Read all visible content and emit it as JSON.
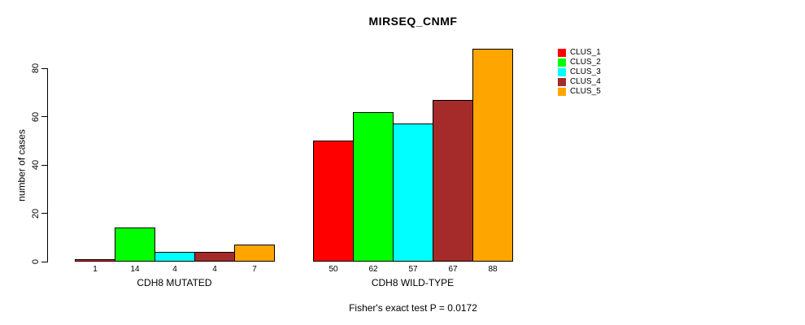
{
  "chart_data": {
    "type": "bar",
    "title": "MIRSEQ_CNMF",
    "ylabel": "number of cases",
    "xlabel": "",
    "ylim": [
      0,
      88
    ],
    "yticks": [
      0,
      20,
      40,
      60,
      80
    ],
    "grid": false,
    "legend_position": "top-right",
    "series_labels": [
      "CLUS_1",
      "CLUS_2",
      "CLUS_3",
      "CLUS_4",
      "CLUS_5"
    ],
    "colors": [
      "#ff0000",
      "#00ff00",
      "#00ffff",
      "#a52a2a",
      "#ffa500"
    ],
    "groups": [
      {
        "label": "CDH8 MUTATED",
        "values": [
          1,
          14,
          4,
          4,
          7
        ]
      },
      {
        "label": "CDH8 WILD-TYPE",
        "values": [
          50,
          62,
          57,
          67,
          88
        ]
      }
    ],
    "bar_value_labels": true,
    "annotation": "Fisher's exact test P = 0.0172"
  }
}
